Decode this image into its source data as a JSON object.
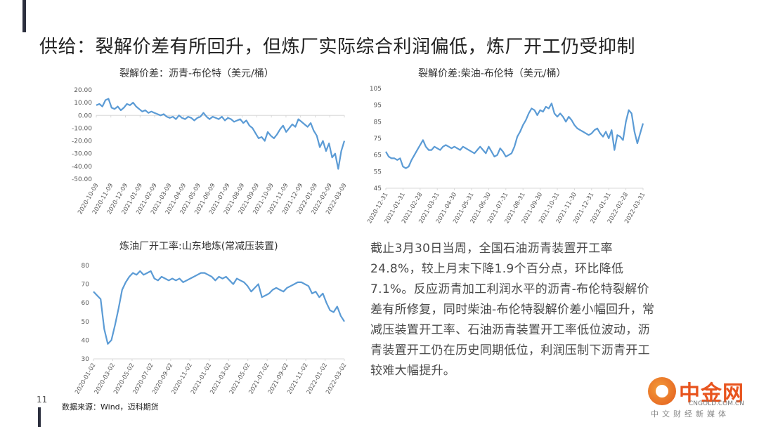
{
  "page_title": "供给：裂解价差有所回升，但炼厂实际综合利润偏低，炼厂开工仍受抑制",
  "paragraph": "截止3月30日当周，全国石油沥青装置开工率24.8%，较上月末下降1.9个百分点，环比降低7.1%。反应沥青加工利润水平的沥青-布伦特裂解价差有所修复，同时柴油-布伦特裂解价差小幅回升，常减压装置开工率、石油沥青装置开工率低位波动，沥青装置开工仍在历史同期低位，利润压制下沥青开工较难大幅提升。",
  "page_number": "11",
  "source": "数据来源：Wind，迈科期货",
  "logo": {
    "name": "中金网",
    "url": "CNGOLD.COM.CN",
    "tagline": "中文财经新媒体"
  },
  "colors": {
    "line": "#5b9bd5",
    "axis": "#d9d9d9",
    "tick": "#595959",
    "dark_bar": "#2c2f3e"
  },
  "chart_data": [
    {
      "type": "line",
      "title": "裂解价差：沥青-布伦特（美元/桶）",
      "ylim": [
        -50,
        20
      ],
      "yticks": [
        "20.00",
        "10.00",
        "0.00",
        "-10.00",
        "-20.00",
        "-30.00",
        "-40.00",
        "-50.00"
      ],
      "xticks": [
        "2020-10-09",
        "2020-11-09",
        "2020-12-09",
        "2021-01-09",
        "2021-02-09",
        "2021-03-09",
        "2021-04-09",
        "2021-05-09",
        "2021-06-09",
        "2021-07-09",
        "2021-08-09",
        "2021-09-09",
        "2021-10-09",
        "2021-11-09",
        "2021-12-09",
        "2022-01-09",
        "2022-02-09",
        "2022-03-09"
      ],
      "series": [
        {
          "values": [
            8,
            9,
            7,
            12,
            13,
            6,
            5,
            7,
            4,
            6,
            9,
            8,
            10,
            7,
            5,
            3,
            4,
            2,
            3,
            2,
            1,
            0,
            1,
            -1,
            -2,
            -1,
            -3,
            0,
            -2,
            -3,
            -1,
            -2,
            -4,
            -2,
            -1,
            2,
            -1,
            -3,
            -1,
            -2,
            -3,
            -1,
            -4,
            -2,
            -3,
            -5,
            -4,
            -3,
            -6,
            -4,
            -8,
            -10,
            -14,
            -18,
            -17,
            -20,
            -13,
            -16,
            -18,
            -15,
            -11,
            -8,
            -13,
            -10,
            -7,
            -9,
            -3,
            -5,
            -7,
            -9,
            -6,
            -12,
            -16,
            -25,
            -20,
            -28,
            -22,
            -33,
            -30,
            -42,
            -28,
            -20
          ]
        }
      ]
    },
    {
      "type": "line",
      "title": "裂解价差:柴油-布伦特（美元/桶）",
      "ylim": [
        45,
        105
      ],
      "yticks": [
        "105",
        "95",
        "85",
        "75",
        "65",
        "55",
        "45"
      ],
      "xticks": [
        "2020-12-31",
        "2021-01-31",
        "2021-02-28",
        "2021-03-31",
        "2021-04-30",
        "2021-05-31",
        "2021-06-30",
        "2021-07-31",
        "2021-08-31",
        "2021-09-30",
        "2021-10-31",
        "2021-11-30",
        "2021-12-31",
        "2022-01-31",
        "2022-02-28",
        "2022-03-31"
      ],
      "series": [
        {
          "values": [
            67,
            64,
            63,
            63,
            62,
            63,
            58,
            57,
            58,
            62,
            65,
            68,
            71,
            74,
            70,
            68,
            68,
            70,
            69,
            68,
            70,
            71,
            70,
            69,
            70,
            69,
            68,
            70,
            69,
            68,
            67,
            66,
            68,
            70,
            68,
            66,
            70,
            67,
            64,
            65,
            69,
            67,
            64,
            65,
            66,
            70,
            76,
            79,
            83,
            86,
            90,
            93,
            92,
            89,
            92,
            91,
            94,
            93,
            96,
            90,
            88,
            90,
            88,
            85,
            88,
            86,
            83,
            81,
            80,
            79,
            78,
            77,
            78,
            80,
            81,
            78,
            76,
            79,
            75,
            80,
            68,
            77,
            76,
            74,
            85,
            92,
            90,
            79,
            72,
            78,
            84
          ]
        }
      ]
    },
    {
      "type": "line",
      "title": "炼油厂开工率:山东地炼(常减压装置)",
      "ylim": [
        30,
        80
      ],
      "yticks": [
        "80",
        "70",
        "60",
        "50",
        "40",
        "30"
      ],
      "xticks": [
        "2020-01-02",
        "2020-03-02",
        "2020-05-02",
        "2020-07-02",
        "2020-09-02",
        "2020-11-02",
        "2021-01-02",
        "2021-03-02",
        "2021-05-02",
        "2021-07-02",
        "2021-09-02",
        "2021-11-02",
        "2022-01-02",
        "2022-03-02"
      ],
      "series": [
        {
          "values": [
            66,
            64,
            62,
            46,
            38,
            40,
            48,
            57,
            67,
            71,
            74,
            76,
            75,
            77,
            75,
            76,
            77,
            73,
            72,
            74,
            73,
            72,
            73,
            72,
            73,
            71,
            72,
            73,
            74,
            75,
            76,
            76,
            75,
            74,
            72,
            74,
            73,
            74,
            72,
            70,
            73,
            72,
            71,
            69,
            66,
            68,
            70,
            63,
            64,
            65,
            67,
            68,
            67,
            66,
            68,
            69,
            70,
            71,
            71,
            70,
            69,
            65,
            66,
            63,
            65,
            60,
            56,
            55,
            58,
            53,
            50
          ]
        }
      ]
    }
  ]
}
